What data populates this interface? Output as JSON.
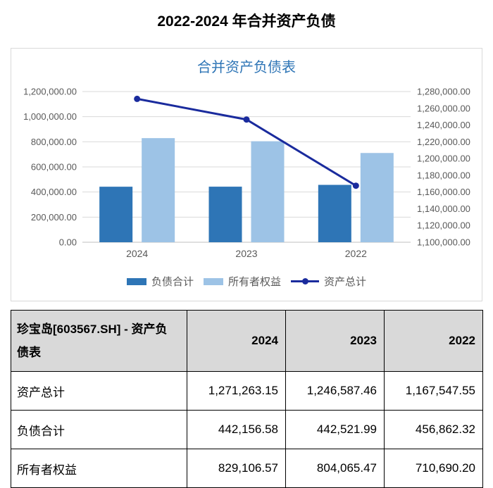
{
  "page": {
    "title": "2022-2024 年合并资产负债"
  },
  "chart_data": {
    "type": "bar+line",
    "title": "合并资产负债表",
    "categories": [
      "2024",
      "2023",
      "2022"
    ],
    "series": [
      {
        "id": "total-liabilities",
        "name": "负债合计",
        "type": "bar",
        "axis": "left",
        "color": "#2e75b6",
        "values": [
          442156.58,
          442521.99,
          456862.32
        ]
      },
      {
        "id": "owners-equity",
        "name": "所有者权益",
        "type": "bar",
        "axis": "left",
        "color": "#9dc3e6",
        "values": [
          829106.57,
          804065.47,
          710690.2
        ]
      },
      {
        "id": "total-assets",
        "name": "资产总计",
        "type": "line",
        "axis": "right",
        "color": "#1a2b9d",
        "values": [
          1271263.15,
          1246587.46,
          1167547.55
        ]
      }
    ],
    "left_axis": {
      "min": 0,
      "max": 1200000,
      "step": 200000
    },
    "right_axis": {
      "min": 1100000,
      "max": 1280000,
      "step": 20000
    },
    "grid": true,
    "legend_position": "bottom",
    "colors": {
      "gridline": "#d9d9d9",
      "axis_line": "#bfbfbf",
      "tick_label": "#595959",
      "title": "#2e75b6"
    }
  },
  "table": {
    "header": {
      "title": "珍宝岛[603567.SH] - 资产负债表",
      "years": [
        "2024",
        "2023",
        "2022"
      ]
    },
    "rows": [
      {
        "id": "total-assets",
        "label": "资产总计",
        "values": [
          "1,271,263.15",
          "1,246,587.46",
          "1,167,547.55"
        ]
      },
      {
        "id": "total-liabilities",
        "label": "负债合计",
        "values": [
          "442,156.58",
          "442,521.99",
          "456,862.32"
        ]
      },
      {
        "id": "owners-equity",
        "label": "所有者权益",
        "values": [
          "829,106.57",
          "804,065.47",
          "710,690.20"
        ]
      }
    ]
  }
}
